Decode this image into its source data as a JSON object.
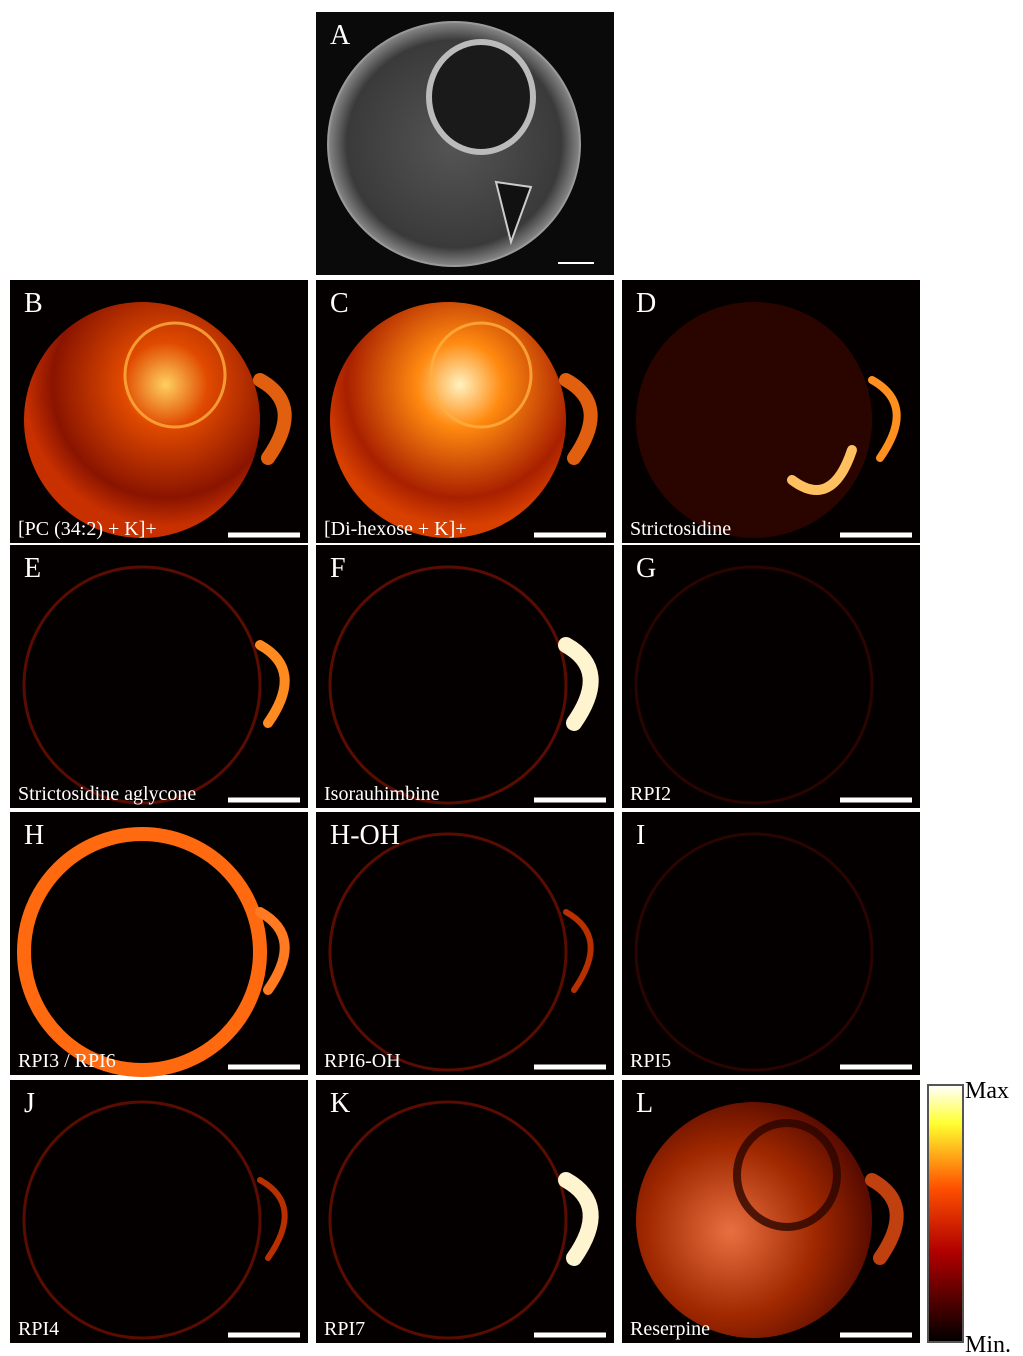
{
  "panels": [
    {
      "letter": "A"
    },
    {
      "letter": "B",
      "label": "[PC (34:2) + K]+"
    },
    {
      "letter": "C",
      "label": "[Di-hexose + K]+"
    },
    {
      "letter": "D",
      "label": "Strictosidine"
    },
    {
      "letter": "E",
      "label": "Strictosidine aglycone"
    },
    {
      "letter": "F",
      "label": "Isorauhimbine"
    },
    {
      "letter": "G",
      "label": "RPI2"
    },
    {
      "letter": "H",
      "label": "RPI3 / RPI6"
    },
    {
      "letter": "H-OH",
      "label": "RPI6-OH"
    },
    {
      "letter": "I",
      "label": "RPI5"
    },
    {
      "letter": "J",
      "label": "RPI4"
    },
    {
      "letter": "K",
      "label": "RPI7"
    },
    {
      "letter": "L",
      "label": "Reserpine"
    }
  ],
  "colorbar": {
    "max": "Max",
    "min": "Min."
  }
}
